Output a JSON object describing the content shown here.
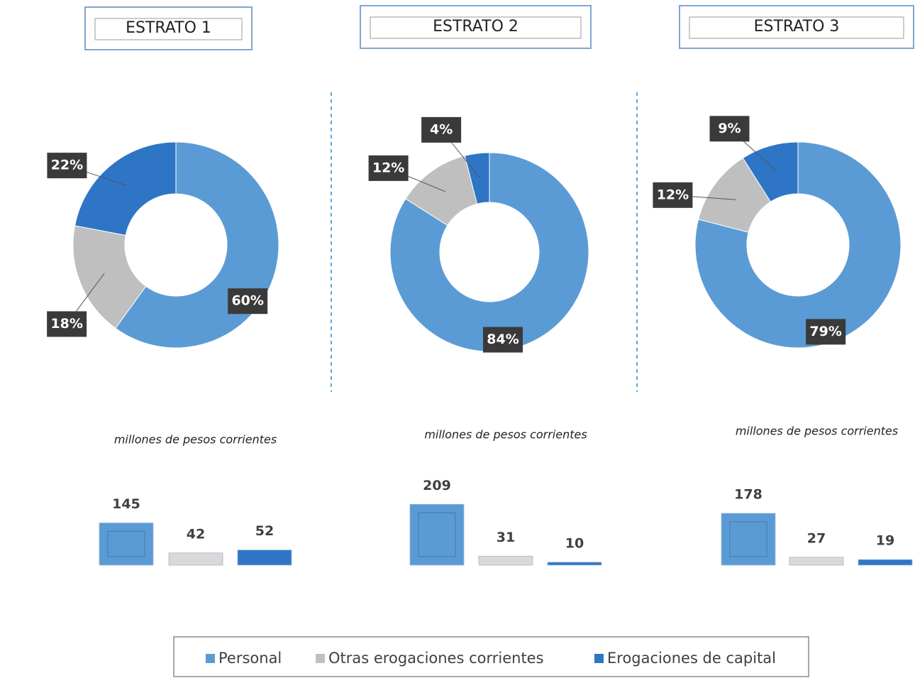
{
  "legend": {
    "names": [
      "Personal",
      "Otras erogaciones corrientes",
      "Erogaciones de capital"
    ],
    "colors": [
      "#5b9bd5",
      "#bfbfbf",
      "#2e75c6"
    ]
  },
  "chart_data": [
    {
      "type": "donut",
      "title": "ESTRATO 1",
      "values": [
        60,
        18,
        22
      ],
      "value_labels": [
        "60%",
        "18%",
        "22%"
      ]
    },
    {
      "type": "donut",
      "title": "ESTRATO 2",
      "values": [
        84,
        12,
        4
      ],
      "value_labels": [
        "84%",
        "12%",
        "4%"
      ]
    },
    {
      "type": "donut",
      "title": "ESTRATO 3",
      "values": [
        79,
        12,
        9
      ],
      "value_labels": [
        "79%",
        "12%",
        "9%"
      ]
    },
    {
      "type": "bar",
      "subtitle": "millones de pesos corrientes",
      "values": [
        145,
        42,
        52
      ]
    },
    {
      "type": "bar",
      "subtitle": "millones de pesos corrientes",
      "values": [
        209,
        31,
        10
      ]
    },
    {
      "type": "bar",
      "subtitle": "millones de pesos corrientes",
      "values": [
        178,
        27,
        19
      ]
    }
  ]
}
